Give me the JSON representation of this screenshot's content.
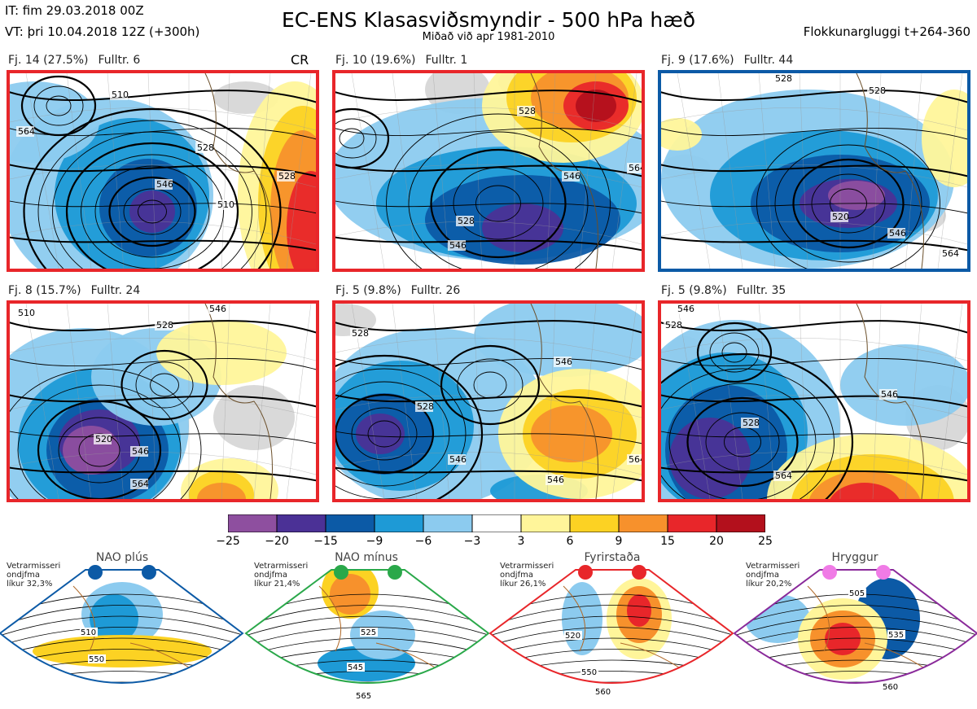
{
  "header": {
    "it": "IT: fim 29.03.2018 00Z",
    "vt": "VT: þri 10.04.2018 12Z  (+300h)",
    "title": "EC-ENS Klasasviðsmyndir - 500 hPa hæð",
    "subtitle": "Miðað við apr 1981-2010",
    "window": "Flokkunargluggi t+264-360"
  },
  "cr_label": "CR",
  "panels": [
    {
      "count": "Fj. 14 (27.5%)",
      "rep": "Fulltr. 6",
      "border": "#e8262a",
      "contour_labels": [
        "510",
        "528",
        "546",
        "564",
        "510",
        "528"
      ]
    },
    {
      "count": "Fj. 10 (19.6%)",
      "rep": "Fulltr. 1",
      "border": "#e8262a",
      "contour_labels": [
        "528",
        "546",
        "564",
        "528",
        "546"
      ]
    },
    {
      "count": "Fj. 9 (17.6%)",
      "rep": "Fulltr. 44",
      "border": "#0c5aa6",
      "contour_labels": [
        "528",
        "528",
        "546",
        "564",
        "520"
      ]
    },
    {
      "count": "Fj. 8 (15.7%)",
      "rep": "Fulltr. 24",
      "border": "#e8262a",
      "contour_labels": [
        "510",
        "528",
        "546",
        "520",
        "546",
        "564"
      ]
    },
    {
      "count": "Fj. 5 (9.8%)",
      "rep": "Fulltr. 26",
      "border": "#e8262a",
      "contour_labels": [
        "528",
        "528",
        "546",
        "546",
        "564",
        "546"
      ]
    },
    {
      "count": "Fj. 5 (9.8%)",
      "rep": "Fulltr. 35",
      "border": "#e8262a",
      "contour_labels": [
        "528",
        "546",
        "528",
        "546",
        "564"
      ]
    }
  ],
  "colorbar": {
    "ticks": [
      "−25",
      "−20",
      "−15",
      "−9",
      "−6",
      "−3",
      "3",
      "6",
      "9",
      "15",
      "20",
      "25"
    ],
    "colors": [
      "#8e4f9f",
      "#4b3196",
      "#0c5aa6",
      "#1e9ad6",
      "#8ccbef",
      "#ffffff",
      "#fff59a",
      "#fcd223",
      "#f7912c",
      "#e8262a",
      "#b3101c"
    ]
  },
  "regimes": [
    {
      "name": "NAO plús",
      "color": "#0c5aa6",
      "note": [
        "Vetrarmisseri",
        "ondjfma",
        "líkur 32,3%"
      ],
      "contour_labels": [
        "510",
        "550"
      ]
    },
    {
      "name": "NAO mínus",
      "color": "#2aa84a",
      "note": [
        "Vetrarmisseri",
        "ondjfma",
        "líkur 21,4%"
      ],
      "contour_labels": [
        "525",
        "545",
        "565"
      ]
    },
    {
      "name": "Fyrirstaða",
      "color": "#e8262a",
      "note": [
        "Vetrarmisseri",
        "ondjfma",
        "líkur 26,1%"
      ],
      "contour_labels": [
        "520",
        "550",
        "560"
      ]
    },
    {
      "name": "Hryggur",
      "color": "#8a2a9a",
      "note": [
        "Vetrarmisseri",
        "ondjfma",
        "líkur 20,2%"
      ],
      "contour_labels": [
        "505",
        "535",
        "560"
      ]
    }
  ]
}
